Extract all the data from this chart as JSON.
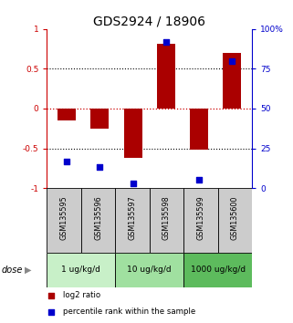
{
  "title": "GDS2924 / 18906",
  "samples": [
    "GSM135595",
    "GSM135596",
    "GSM135597",
    "GSM135598",
    "GSM135599",
    "GSM135600"
  ],
  "log2_ratio": [
    -0.15,
    -0.25,
    -0.62,
    0.82,
    -0.52,
    0.7
  ],
  "percentile_rank": [
    17,
    13,
    3,
    92,
    5,
    80
  ],
  "ylim_left": [
    -1,
    1
  ],
  "ylim_right": [
    0,
    100
  ],
  "dose_groups": [
    {
      "label": "1 ug/kg/d",
      "samples": [
        0,
        1
      ],
      "color": "#c8f0c8"
    },
    {
      "label": "10 ug/kg/d",
      "samples": [
        2,
        3
      ],
      "color": "#a0e0a0"
    },
    {
      "label": "1000 ug/kg/d",
      "samples": [
        4,
        5
      ],
      "color": "#5dbb5d"
    }
  ],
  "bar_color": "#aa0000",
  "dot_color": "#0000cc",
  "bar_width": 0.55,
  "dot_size": 22,
  "zero_line_color": "#cc0000",
  "background_color": "#ffffff",
  "sample_bg_color": "#cccccc",
  "title_fontsize": 10,
  "tick_fontsize": 6.5,
  "dose_label": "dose",
  "legend_log2": "log2 ratio",
  "legend_pct": "percentile rank within the sample"
}
